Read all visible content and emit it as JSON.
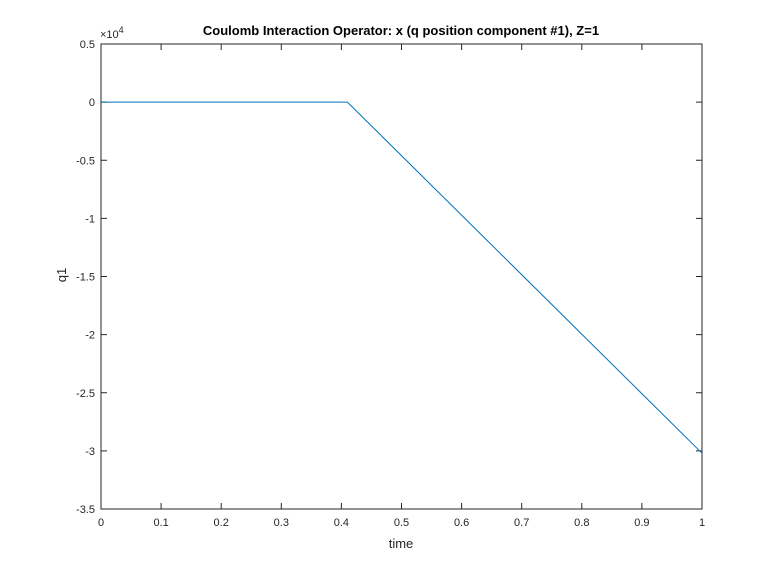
{
  "chart_data": {
    "type": "line",
    "title": "Coulomb Interaction Operator: x (q position component #1), Z=1",
    "xlabel": "time",
    "ylabel": "q1",
    "xlim": [
      0,
      1
    ],
    "ylim": [
      -3.5,
      0.5
    ],
    "y_multiplier": "×10",
    "y_exponent": "4",
    "x_ticks": [
      0,
      0.1,
      0.2,
      0.3,
      0.4,
      0.5,
      0.6,
      0.7,
      0.8,
      0.9,
      1
    ],
    "x_tick_labels": [
      "0",
      "0.1",
      "0.2",
      "0.3",
      "0.4",
      "0.5",
      "0.6",
      "0.7",
      "0.8",
      "0.9",
      "1"
    ],
    "y_ticks": [
      0.5,
      0,
      -0.5,
      -1,
      -1.5,
      -2,
      -2.5,
      -3,
      -3.5
    ],
    "y_tick_labels": [
      "0.5",
      "0",
      "-0.5",
      "-1",
      "-1.5",
      "-2",
      "-2.5",
      "-3",
      "-3.5"
    ],
    "grid": false,
    "series": [
      {
        "color": "#0072bd",
        "x": [
          0,
          0.41,
          1.0
        ],
        "y": [
          0,
          0,
          -3.02
        ]
      }
    ]
  }
}
